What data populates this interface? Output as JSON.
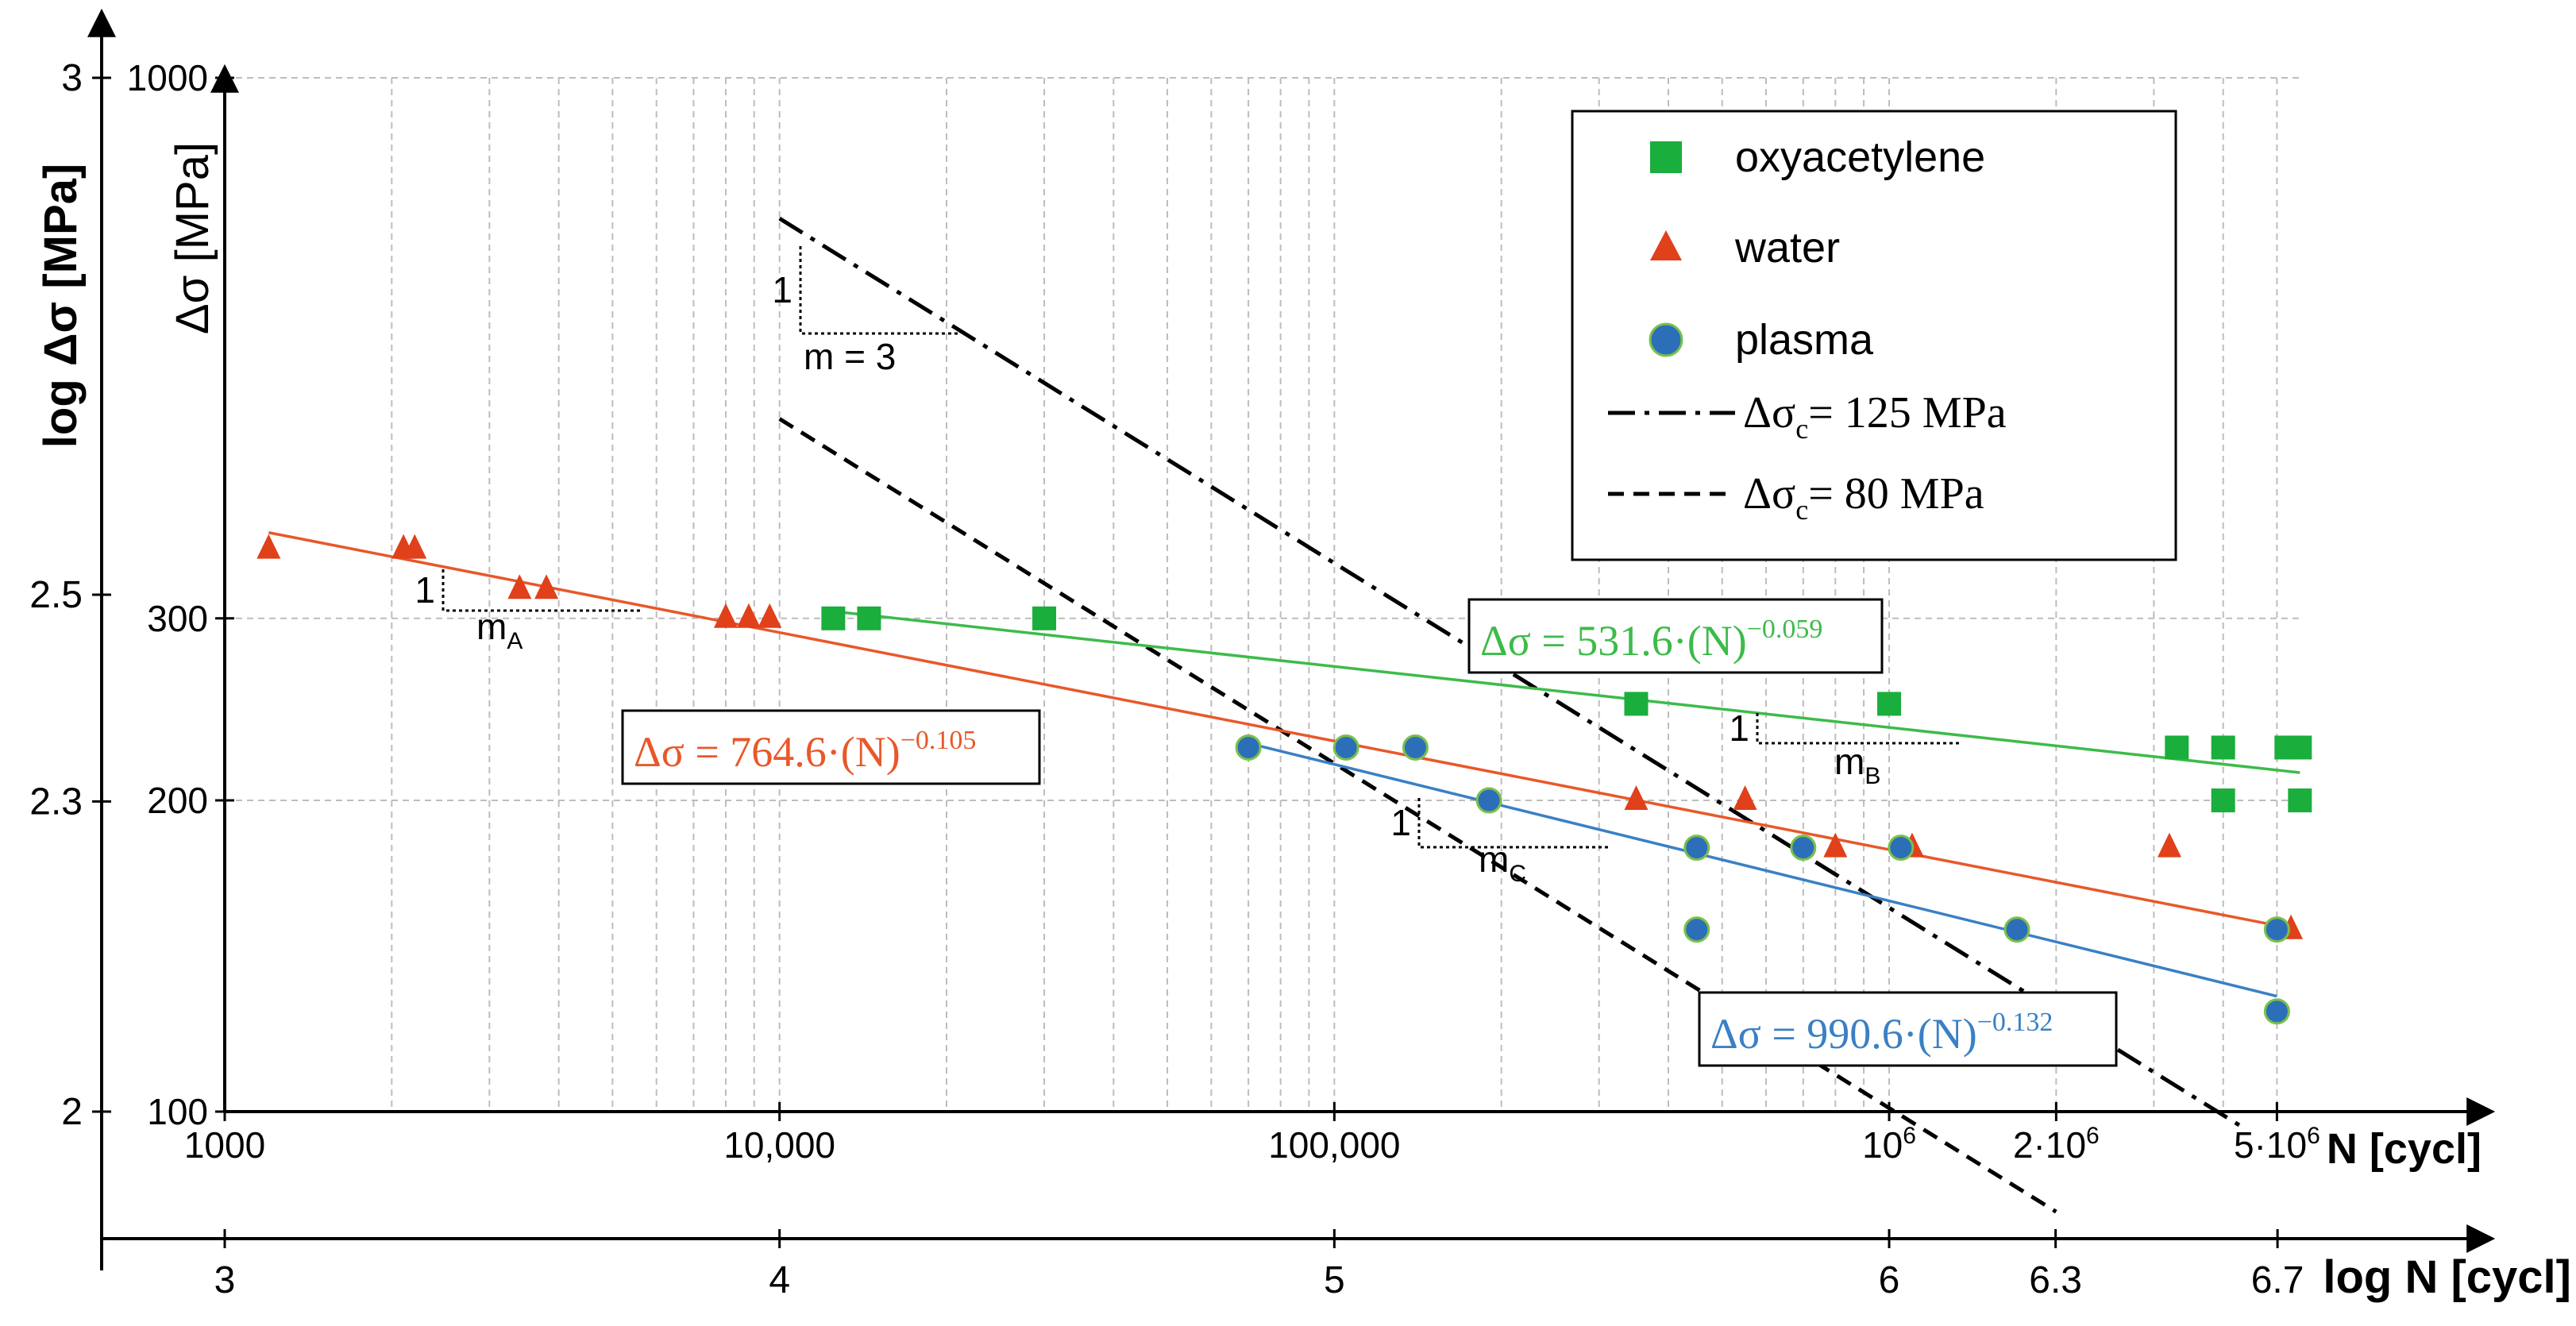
{
  "chart_data": {
    "type": "scatter",
    "title": "",
    "x_axis": {
      "label": "N [cycl]",
      "scale": "log",
      "range": [
        1000,
        8000000
      ],
      "ticks": [
        {
          "value": 1000,
          "label": "1000"
        },
        {
          "value": 10000,
          "label": "10,000"
        },
        {
          "value": 100000,
          "label": "100,000"
        },
        {
          "value": 1000000,
          "label": "10",
          "sup": "6"
        },
        {
          "value": 2000000,
          "label": "2·10",
          "sup": "6"
        },
        {
          "value": 5000000,
          "label": "5·10",
          "sup": "6"
        }
      ]
    },
    "x_log_axis": {
      "label": "log N [cycl]",
      "ticks": [
        {
          "value": 3,
          "label": "3"
        },
        {
          "value": 4,
          "label": "4"
        },
        {
          "value": 5,
          "label": "5"
        },
        {
          "value": 6,
          "label": "6"
        },
        {
          "value": 6.3,
          "label": "6.3"
        },
        {
          "value": 6.7,
          "label": "6.7"
        }
      ]
    },
    "y_axis": {
      "label": "Δσ [MPa]",
      "scale": "log",
      "range": [
        100,
        1000
      ],
      "ticks": [
        {
          "value": 100,
          "label": "100"
        },
        {
          "value": 200,
          "label": "200"
        },
        {
          "value": 300,
          "label": "300"
        },
        {
          "value": 1000,
          "label": "1000"
        }
      ]
    },
    "y_log_axis": {
      "label": "log Δσ [MPa]",
      "ticks": [
        {
          "value": 2,
          "label": "2"
        },
        {
          "value": 2.3,
          "label": "2.3"
        },
        {
          "value": 2.5,
          "label": "2.5"
        },
        {
          "value": 3,
          "label": "3"
        }
      ]
    },
    "series": [
      {
        "name": "oxyacetylene",
        "marker": "square",
        "color": "#1aae3c",
        "points": [
          [
            12500,
            300
          ],
          [
            14500,
            300
          ],
          [
            30000,
            300
          ],
          [
            350000,
            248
          ],
          [
            1000000,
            248
          ],
          [
            3300000,
            225
          ],
          [
            4000000,
            225
          ],
          [
            4000000,
            200
          ],
          [
            5200000,
            225
          ],
          [
            5500000,
            225
          ],
          [
            5500000,
            200
          ]
        ]
      },
      {
        "name": "water",
        "marker": "triangle",
        "color": "#e0401a",
        "points": [
          [
            1200,
            350
          ],
          [
            2100,
            350
          ],
          [
            2200,
            350
          ],
          [
            3400,
            320
          ],
          [
            3800,
            320
          ],
          [
            8000,
            300
          ],
          [
            8800,
            300
          ],
          [
            9600,
            300
          ],
          [
            350000,
            200
          ],
          [
            550000,
            200
          ],
          [
            800000,
            180
          ],
          [
            1100000,
            180
          ],
          [
            3200000,
            180
          ],
          [
            5300000,
            150
          ]
        ]
      },
      {
        "name": "plasma",
        "marker": "circle",
        "color": "#2c6fb8",
        "points": [
          [
            70000,
            225
          ],
          [
            105000,
            225
          ],
          [
            140000,
            225
          ],
          [
            190000,
            200
          ],
          [
            450000,
            180
          ],
          [
            450000,
            150
          ],
          [
            700000,
            180
          ],
          [
            1050000,
            180
          ],
          [
            1700000,
            150
          ],
          [
            5000000,
            150
          ],
          [
            5000000,
            125
          ]
        ]
      }
    ],
    "fits": [
      {
        "name": "water fit",
        "color": "#e8582a",
        "coef": 764.6,
        "exp": -0.105,
        "range": [
          1200,
          5300000
        ],
        "label_prefix": "Δσ",
        "label_eq": " = 764.6·(N)",
        "label_exp": "−0.105"
      },
      {
        "name": "oxyacetylene fit",
        "color": "#3dbb4a",
        "coef": 531.6,
        "exp": -0.059,
        "range": [
          12000,
          5500000
        ],
        "label_prefix": "Δσ",
        "label_eq": " = 531.6·(N)",
        "label_exp": "−0.059"
      },
      {
        "name": "plasma fit",
        "color": "#3a80c4",
        "coef": 990.6,
        "exp": -0.132,
        "range": [
          70000,
          5000000
        ],
        "label_prefix": "Δσ",
        "label_eq": " = 990.6·(N)",
        "label_exp": "−0.132"
      }
    ],
    "reference_lines": [
      {
        "name": "Δσc = 125 MPa",
        "style": "dashdot",
        "delta_sigma_c": 125,
        "m": 3,
        "range": [
          10000,
          4400000
        ],
        "legend_prefix": "Δσ",
        "legend_sub": "c",
        "legend_suffix": "= 125 MPa"
      },
      {
        "name": "Δσc = 80 MPa",
        "style": "dashed",
        "delta_sigma_c": 80,
        "m": 3,
        "range": [
          10000,
          2000000
        ],
        "legend_prefix": "Δσ",
        "legend_sub": "c",
        "legend_suffix": "= 80 MPa"
      }
    ],
    "slope_annotations": [
      {
        "one": "1",
        "label": "m",
        "sub": "A"
      },
      {
        "one": "1",
        "label": "m",
        "sub": "B"
      },
      {
        "one": "1",
        "label": "m",
        "sub": "C"
      },
      {
        "one": "1",
        "label": "m = 3",
        "sub": ""
      }
    ],
    "legend": {
      "position": "top-right",
      "items": [
        "oxyacetylene",
        "water",
        "plasma",
        "Δσc = 125 MPa",
        "Δσc = 80 MPa"
      ]
    }
  }
}
